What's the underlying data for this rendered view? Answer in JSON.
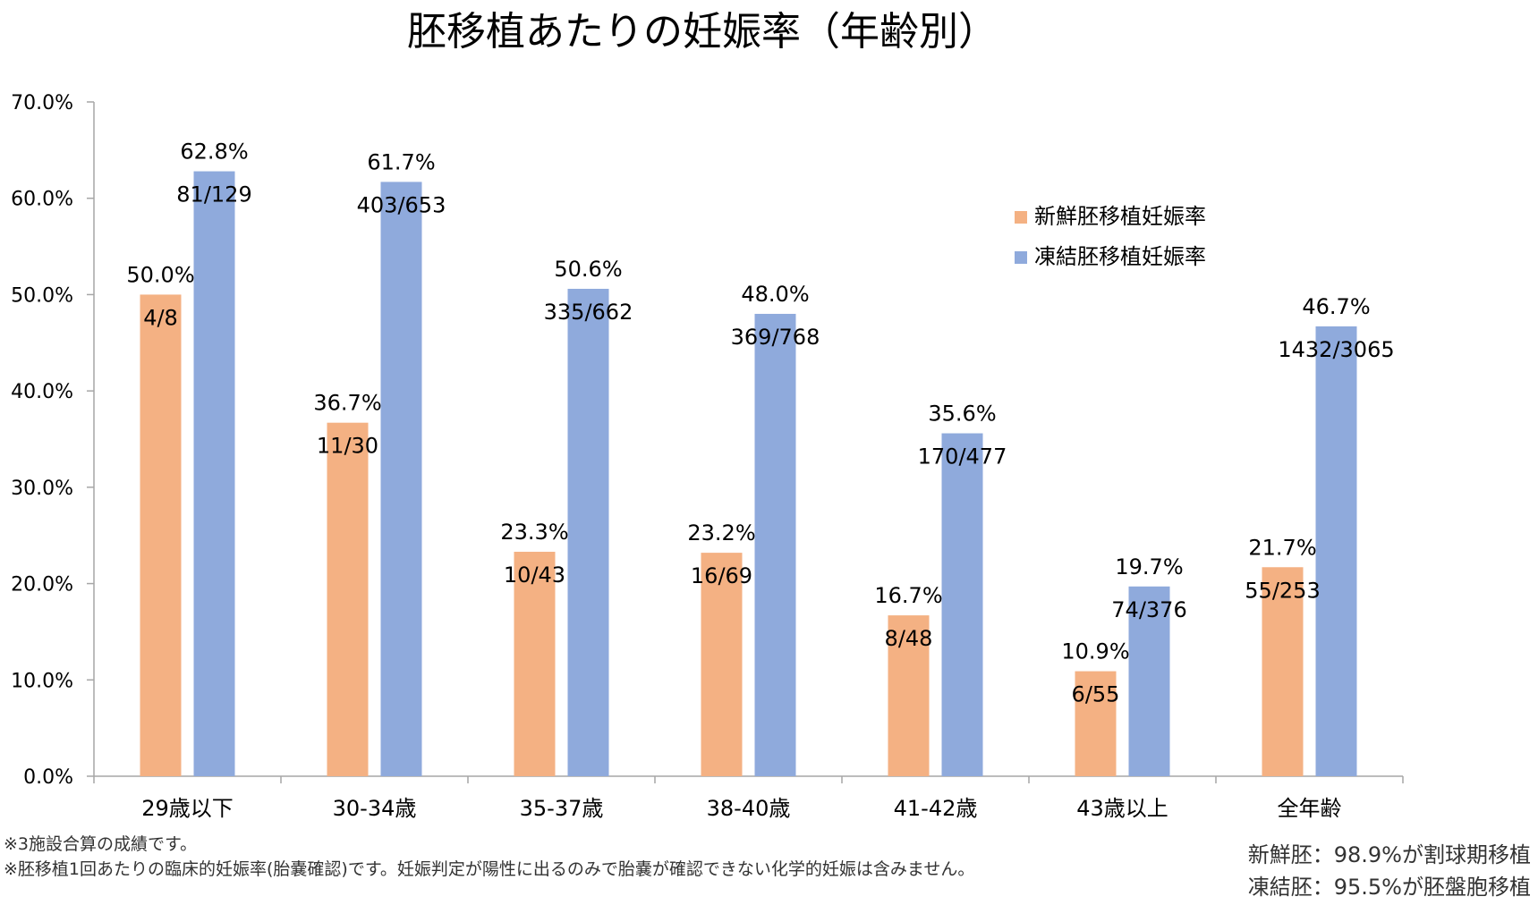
{
  "chart_data": {
    "type": "bar",
    "title": "胚移植あたりの妊娠率（年齢別）",
    "xlabel": "",
    "ylabel": "",
    "ylim": [
      0,
      70
    ],
    "ytick_step": 10,
    "ytick_labels": [
      "0.0%",
      "10.0%",
      "20.0%",
      "30.0%",
      "40.0%",
      "50.0%",
      "60.0%",
      "70.0%"
    ],
    "categories": [
      "29歳以下",
      "30-34歳",
      "35-37歳",
      "38-40歳",
      "41-42歳",
      "43歳以上",
      "全年齢"
    ],
    "series": [
      {
        "name": "新鮮胚移植妊娠率",
        "color": "#f4b183",
        "values": [
          50.0,
          36.7,
          23.3,
          23.2,
          16.7,
          10.9,
          21.7
        ],
        "value_labels": [
          "50.0%",
          "36.7%",
          "23.3%",
          "23.2%",
          "16.7%",
          "10.9%",
          "21.7%"
        ],
        "count_labels": [
          "4/8",
          "11/30",
          "10/43",
          "16/69",
          "8/48",
          "6/55",
          "55/253"
        ]
      },
      {
        "name": "凍結胚移植妊娠率",
        "color": "#8faadc",
        "values": [
          62.8,
          61.7,
          50.6,
          48.0,
          35.6,
          19.7,
          46.7
        ],
        "value_labels": [
          "62.8%",
          "61.7%",
          "50.6%",
          "48.0%",
          "35.6%",
          "19.7%",
          "46.7%"
        ],
        "count_labels": [
          "81/129",
          "403/653",
          "335/662",
          "369/768",
          "170/477",
          "74/376",
          "1432/3065"
        ]
      }
    ],
    "legend": {
      "position": "top-right"
    },
    "grid": false
  },
  "notes": {
    "line1": "※3施設合算の成績です。",
    "line2": "※胚移植1回あたりの臨床的妊娠率(胎嚢確認)です。妊娠判定が陽性に出るのみで胎嚢が確認できない化学的妊娠は含みません。"
  },
  "side_notes": {
    "fresh": "新鮮胚：98.9%が割球期移植",
    "frozen": "凍結胚：95.5%が胚盤胞移植"
  }
}
